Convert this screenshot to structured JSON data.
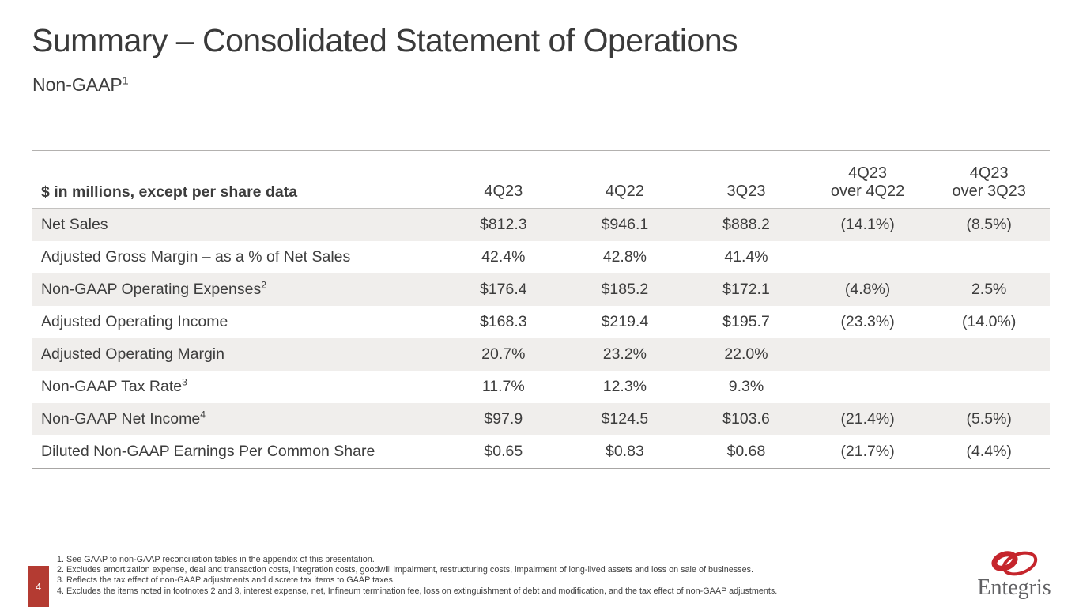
{
  "slide": {
    "title": "Summary – Consolidated Statement of Operations",
    "subtitle": {
      "text": "Non-GAAP",
      "footnote_ref": "1"
    },
    "page_number": "4"
  },
  "table": {
    "header_label": "$ in millions, except per share data",
    "columns": [
      {
        "line1": "4Q23",
        "line2": ""
      },
      {
        "line1": "4Q22",
        "line2": ""
      },
      {
        "line1": "3Q23",
        "line2": ""
      },
      {
        "line1": "4Q23",
        "line2": "over 4Q22"
      },
      {
        "line1": "4Q23",
        "line2": "over 3Q23"
      }
    ],
    "rows": [
      {
        "label": "Net Sales",
        "sup": "",
        "values": [
          "$812.3",
          "$946.1",
          "$888.2",
          "(14.1%)",
          "(8.5%)"
        ]
      },
      {
        "label": "Adjusted Gross Margin – as a % of Net Sales",
        "sup": "",
        "values": [
          "42.4%",
          "42.8%",
          "41.4%",
          "",
          ""
        ]
      },
      {
        "label": "Non-GAAP Operating Expenses",
        "sup": "2",
        "values": [
          "$176.4",
          "$185.2",
          "$172.1",
          "(4.8%)",
          "2.5%"
        ]
      },
      {
        "label": "Adjusted Operating Income",
        "sup": "",
        "values": [
          "$168.3",
          "$219.4",
          "$195.7",
          "(23.3%)",
          "(14.0%)"
        ]
      },
      {
        "label": "Adjusted Operating Margin",
        "sup": "",
        "values": [
          "20.7%",
          "23.2%",
          "22.0%",
          "",
          ""
        ]
      },
      {
        "label": "Non-GAAP Tax Rate",
        "sup": "3",
        "values": [
          "11.7%",
          "12.3%",
          "9.3%",
          "",
          ""
        ]
      },
      {
        "label": "Non-GAAP Net Income",
        "sup": "4",
        "values": [
          "$97.9",
          "$124.5",
          "$103.6",
          "(21.4%)",
          "(5.5%)"
        ]
      },
      {
        "label": "Diluted Non-GAAP Earnings Per Common Share",
        "sup": "",
        "values": [
          "$0.65",
          "$0.83",
          "$0.68",
          "(21.7%)",
          "(4.4%)"
        ]
      }
    ]
  },
  "footnotes": [
    "1. See GAAP to non-GAAP reconciliation tables in the appendix of this presentation.",
    "2. Excludes amortization expense, deal and transaction costs, integration costs, goodwill impairment, restructuring costs, impairment of long-lived assets and loss on sale of businesses.",
    "3. Reflects the tax effect of non-GAAP adjustments and discrete tax items to GAAP taxes.",
    "4. Excludes the items noted in footnotes 2 and 3, interest expense, net, Infineum termination fee, loss on extinguishment of debt and modification, and the tax effect of non-GAAP adjustments."
  ],
  "logo": {
    "wordmark": "Entegris"
  },
  "colors": {
    "accent_red": "#b43b32",
    "logo_red": "#c5252c",
    "wordmark_gray": "#616164",
    "row_stripe": "#f0eeec",
    "text": "#3d3d3d"
  }
}
